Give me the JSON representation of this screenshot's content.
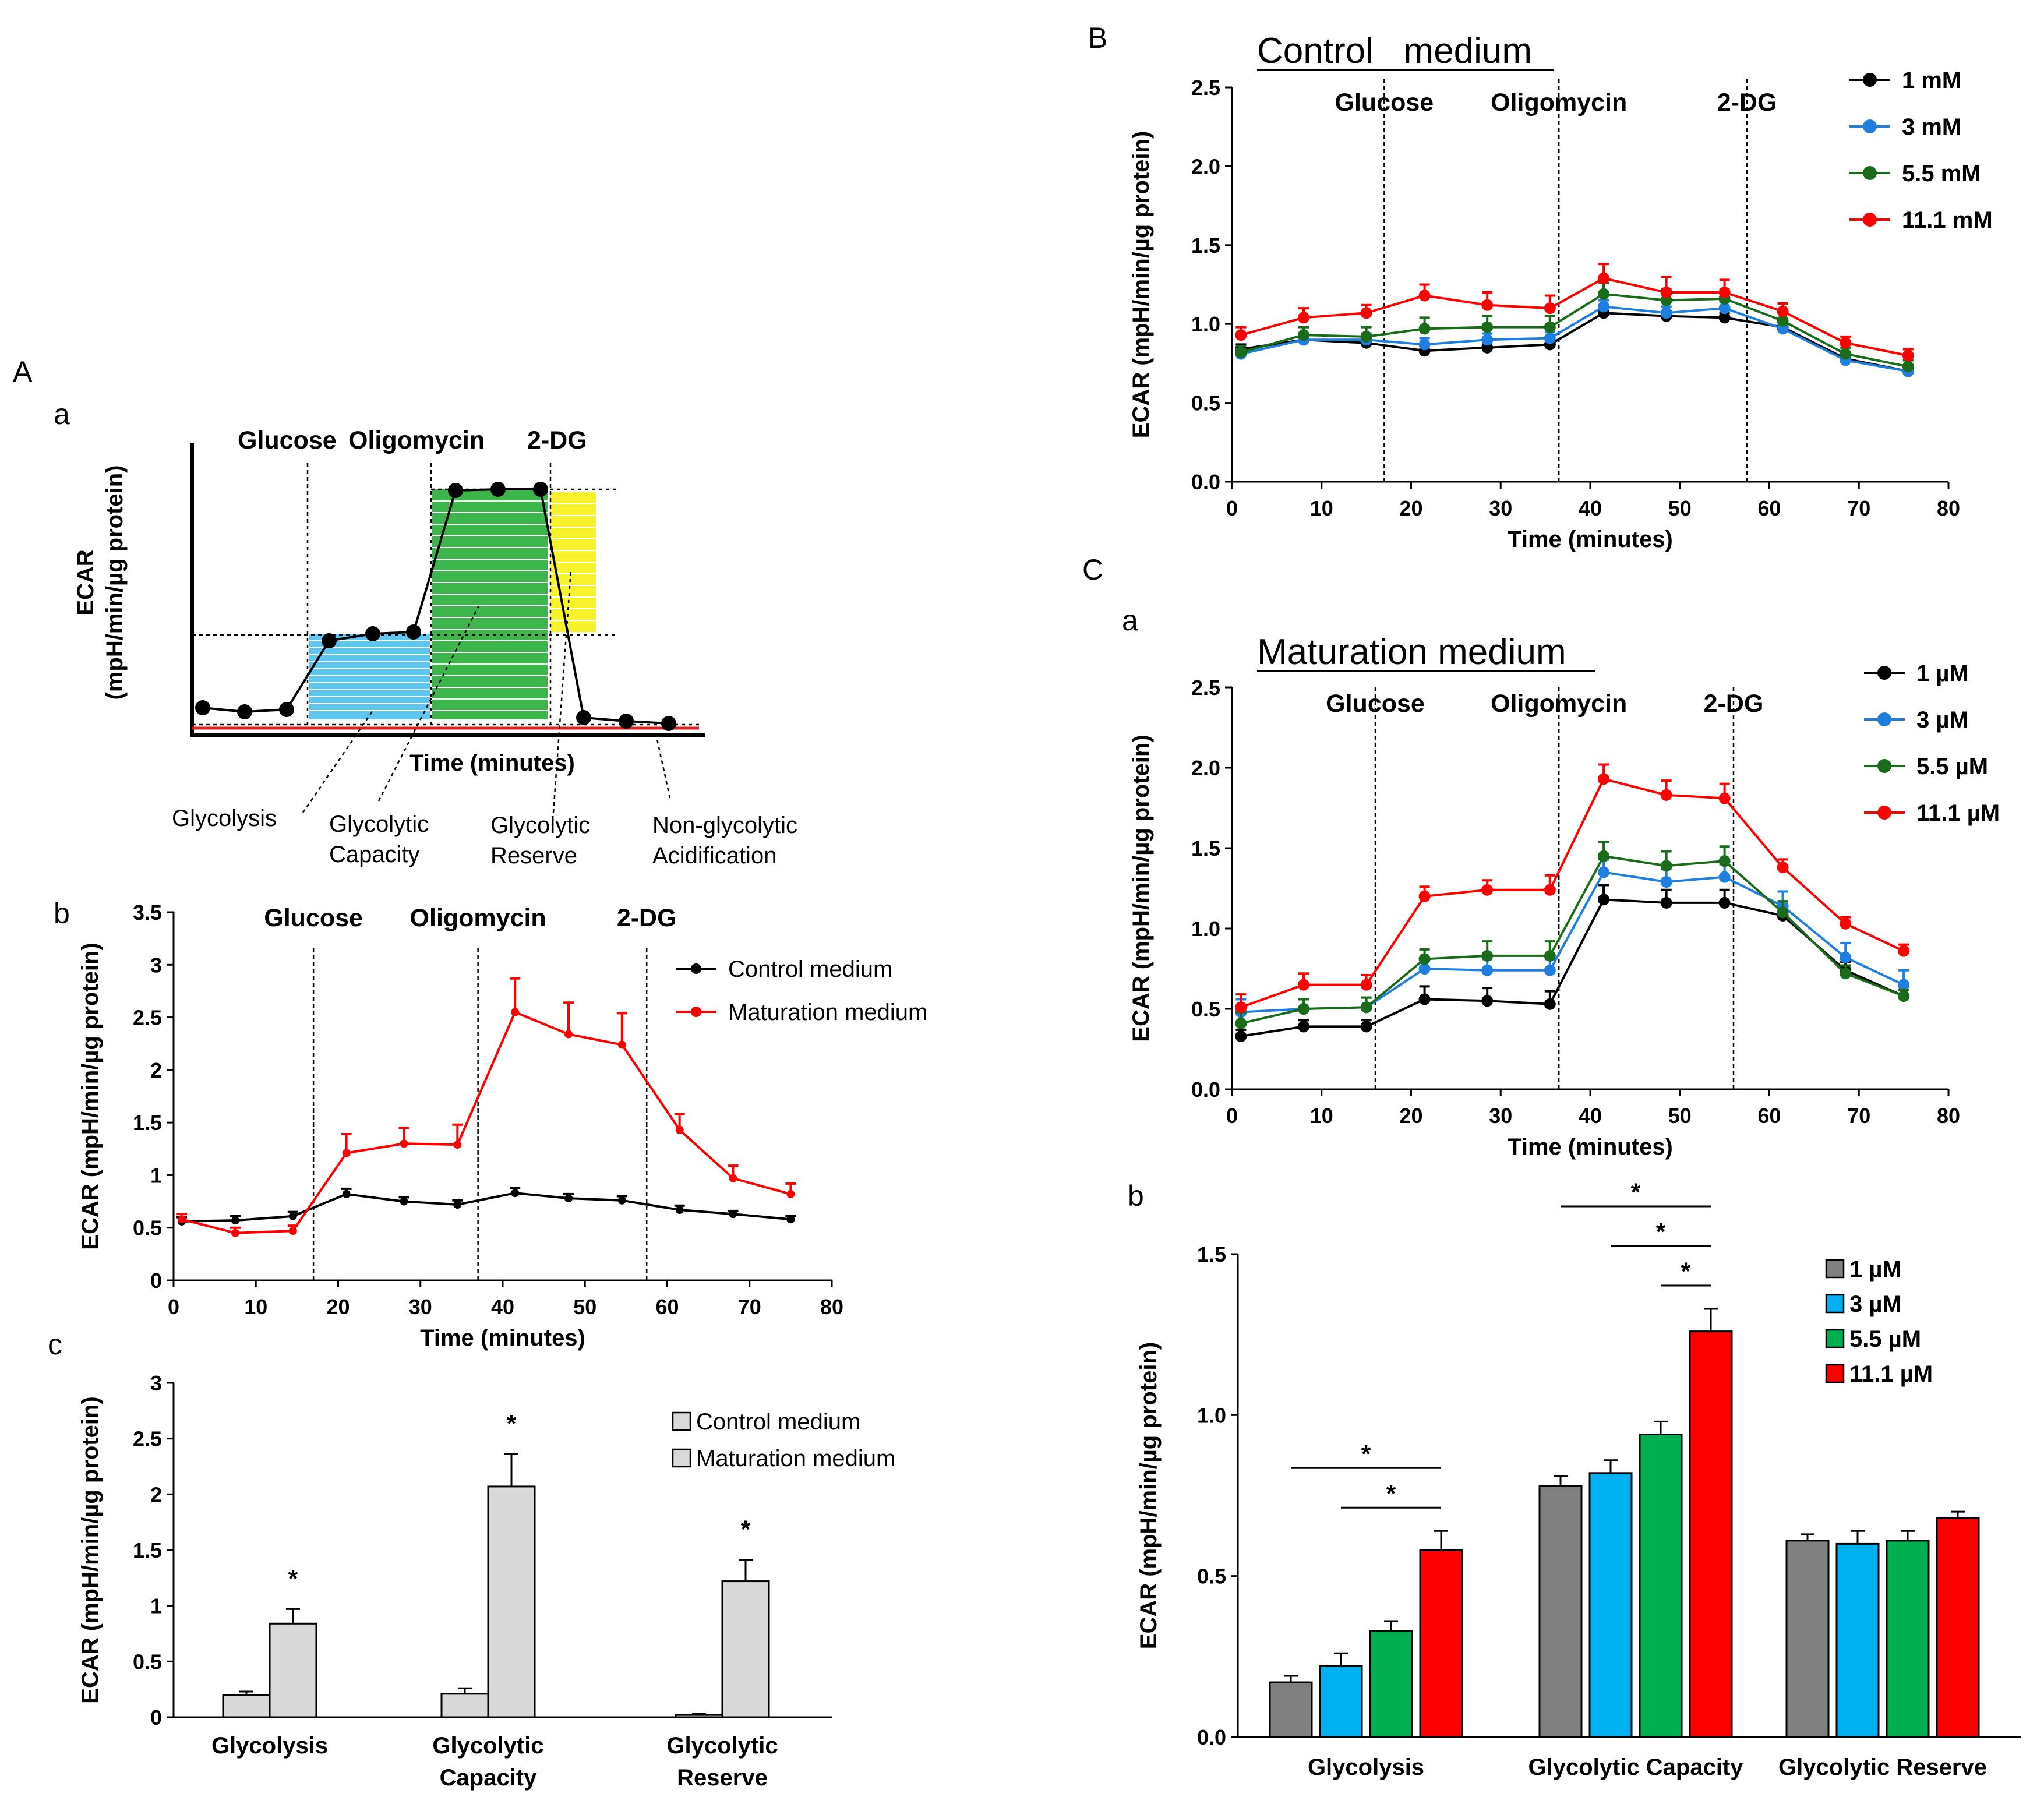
{
  "panels": {
    "A": "A",
    "Aa": "a",
    "Ab": "b",
    "Ac": "c",
    "B": "B",
    "C": "C",
    "Ca": "a",
    "Cb": "b"
  },
  "schematic": {
    "ylabel1": "ECAR",
    "ylabel2": "(mpH/min/µg protein)",
    "xlabel": "Time (minutes)",
    "markers": [
      "Glucose",
      "Oligomycin",
      "2-DG"
    ],
    "annotations": [
      [
        "Glycolysis"
      ],
      [
        "Glycolytic",
        "Capacity"
      ],
      [
        "Glycolytic",
        "Reserve"
      ],
      [
        "Non-glycolytic",
        "Acidification"
      ]
    ],
    "colors": {
      "glycolysis": "#5ec7f0",
      "capacity": "#3cb54a",
      "reserve": "#f7f22c",
      "baseline": "#e02020"
    }
  },
  "colors": {
    "black": "#000000",
    "red": "#ff0000",
    "blue": "#1f7fe0",
    "green": "#1a6b1a",
    "bar_gray": "#808080",
    "bar_blue": "#00b0f0",
    "bar_green": "#00b050",
    "bar_red": "#ff0000",
    "bar_light": "#d9d9d9"
  },
  "chart_data": [
    {
      "id": "A-b",
      "type": "line",
      "title": "",
      "xlabel": "Time (minutes)",
      "ylabel": "ECAR (mpH/min/µg protein)",
      "xlim": [
        0,
        80
      ],
      "ylim": [
        0,
        3.5
      ],
      "xticks": [
        "0",
        "10",
        "20",
        "30",
        "40",
        "50",
        "60",
        "70",
        "80"
      ],
      "yticks": [
        "0",
        "0.5",
        "1",
        "1.5",
        "2",
        "2.5",
        "3",
        "3.5"
      ],
      "markers": [
        {
          "x": 17,
          "label": "Glucose"
        },
        {
          "x": 37,
          "label": "Oligomycin"
        },
        {
          "x": 57.5,
          "label": "2-DG"
        }
      ],
      "x": [
        1,
        7.5,
        14.5,
        21,
        28,
        34.5,
        41.5,
        48,
        54.5,
        61.5,
        68,
        75
      ],
      "series": [
        {
          "name": "Control medium",
          "values": [
            0.56,
            0.57,
            0.61,
            0.82,
            0.75,
            0.72,
            0.83,
            0.78,
            0.76,
            0.67,
            0.63,
            0.58
          ],
          "err": [
            0.04,
            0.04,
            0.04,
            0.05,
            0.04,
            0.04,
            0.05,
            0.04,
            0.04,
            0.04,
            0.03,
            0.03
          ]
        },
        {
          "name": "Maturation medium",
          "values": [
            0.58,
            0.45,
            0.47,
            1.21,
            1.3,
            1.29,
            2.55,
            2.34,
            2.24,
            1.43,
            0.97,
            0.82
          ],
          "err": [
            0.05,
            0.05,
            0.05,
            0.18,
            0.15,
            0.19,
            0.32,
            0.3,
            0.3,
            0.15,
            0.12,
            0.1
          ]
        }
      ]
    },
    {
      "id": "A-c",
      "type": "bar",
      "title": "",
      "xlabel": "",
      "ylabel": "ECAR (mpH/min/µg protein)",
      "ylim": [
        0,
        3
      ],
      "yticks": [
        "0",
        "0.5",
        "1",
        "1.5",
        "2",
        "2.5",
        "3"
      ],
      "categories": [
        [
          "Glycolysis"
        ],
        [
          "Glycolytic",
          "Capacity"
        ],
        [
          "Glycolytic",
          "Reserve"
        ]
      ],
      "series": [
        {
          "name": "Control medium",
          "values": [
            0.2,
            0.21,
            0.02
          ],
          "err": [
            0.03,
            0.05,
            0.01
          ]
        },
        {
          "name": "Maturation medium",
          "values": [
            0.84,
            2.07,
            1.22
          ],
          "err": [
            0.13,
            0.29,
            0.19
          ]
        }
      ],
      "significance": [
        "*",
        "*",
        "*"
      ]
    },
    {
      "id": "B",
      "type": "line",
      "title": "Control   medium",
      "xlabel": "Time (minutes)",
      "ylabel": "ECAR (mpH/min/µg protein)",
      "xlim": [
        0,
        80
      ],
      "ylim": [
        0,
        2.5
      ],
      "xticks": [
        "0",
        "10",
        "20",
        "30",
        "40",
        "50",
        "60",
        "70",
        "80"
      ],
      "yticks": [
        "0.0",
        "0.5",
        "1.0",
        "1.5",
        "2.0",
        "2.5"
      ],
      "markers": [
        {
          "x": 17,
          "label": "Glucose"
        },
        {
          "x": 36.5,
          "label": "Oligomycin"
        },
        {
          "x": 57.5,
          "label": "2-DG"
        }
      ],
      "x": [
        1,
        8,
        15,
        21.5,
        28.5,
        35.5,
        41.5,
        48.5,
        55,
        61.5,
        68.5,
        75.5
      ],
      "series": [
        {
          "name": "1 mM",
          "values": [
            0.84,
            0.9,
            0.88,
            0.83,
            0.85,
            0.87,
            1.07,
            1.05,
            1.04,
            0.98,
            0.78,
            0.7
          ],
          "err": [
            0.03,
            0.03,
            0.03,
            0.03,
            0.03,
            0.03,
            0.03,
            0.03,
            0.03,
            0.03,
            0.03,
            0.03
          ]
        },
        {
          "name": "3 mM",
          "values": [
            0.81,
            0.9,
            0.9,
            0.87,
            0.9,
            0.91,
            1.11,
            1.07,
            1.1,
            0.97,
            0.77,
            0.7
          ],
          "err": [
            0.03,
            0.04,
            0.04,
            0.04,
            0.04,
            0.04,
            0.04,
            0.04,
            0.04,
            0.03,
            0.03,
            0.04
          ]
        },
        {
          "name": "5.5 mM",
          "values": [
            0.82,
            0.93,
            0.92,
            0.97,
            0.98,
            0.98,
            1.19,
            1.15,
            1.16,
            1.02,
            0.81,
            0.73
          ],
          "err": [
            0.04,
            0.05,
            0.06,
            0.07,
            0.07,
            0.07,
            0.07,
            0.07,
            0.06,
            0.05,
            0.04,
            0.04
          ]
        },
        {
          "name": "11.1 mM",
          "values": [
            0.93,
            1.04,
            1.07,
            1.18,
            1.12,
            1.1,
            1.29,
            1.2,
            1.2,
            1.08,
            0.88,
            0.8
          ],
          "err": [
            0.05,
            0.06,
            0.05,
            0.07,
            0.08,
            0.08,
            0.09,
            0.1,
            0.08,
            0.05,
            0.04,
            0.04
          ]
        }
      ]
    },
    {
      "id": "C-a",
      "type": "line",
      "title": "Maturation medium",
      "xlabel": "Time (minutes)",
      "ylabel": "ECAR (mpH/min/µg protein)",
      "xlim": [
        0,
        80
      ],
      "ylim": [
        0,
        2.5
      ],
      "xticks": [
        "0",
        "10",
        "20",
        "30",
        "40",
        "50",
        "60",
        "70",
        "80"
      ],
      "yticks": [
        "0.0",
        "0.5",
        "1.0",
        "1.5",
        "2.0",
        "2.5"
      ],
      "markers": [
        {
          "x": 16,
          "label": "Glucose"
        },
        {
          "x": 36.5,
          "label": "Oligomycin"
        },
        {
          "x": 56,
          "label": "2-DG"
        }
      ],
      "x": [
        1,
        8,
        15,
        21.5,
        28.5,
        35.5,
        41.5,
        48.5,
        55,
        61.5,
        68.5,
        75
      ],
      "series": [
        {
          "name": "1 µM",
          "values": [
            0.33,
            0.39,
            0.39,
            0.56,
            0.55,
            0.53,
            1.18,
            1.16,
            1.16,
            1.08,
            0.74,
            0.58
          ],
          "err": [
            0.04,
            0.04,
            0.04,
            0.08,
            0.08,
            0.08,
            0.09,
            0.08,
            0.08,
            0.06,
            0.05,
            0.04
          ]
        },
        {
          "name": "3 µM",
          "values": [
            0.48,
            0.5,
            0.51,
            0.75,
            0.74,
            0.74,
            1.35,
            1.29,
            1.32,
            1.14,
            0.82,
            0.65
          ],
          "err": [
            0.08,
            0.06,
            0.06,
            0.07,
            0.07,
            0.07,
            0.08,
            0.08,
            0.08,
            0.09,
            0.09,
            0.09
          ]
        },
        {
          "name": "5.5 µM",
          "values": [
            0.41,
            0.5,
            0.51,
            0.81,
            0.83,
            0.83,
            1.45,
            1.39,
            1.42,
            1.1,
            0.72,
            0.58
          ],
          "err": [
            0.07,
            0.06,
            0.06,
            0.06,
            0.09,
            0.09,
            0.09,
            0.09,
            0.09,
            0.07,
            0.05,
            0.04
          ]
        },
        {
          "name": "11.1 µM",
          "values": [
            0.51,
            0.65,
            0.65,
            1.2,
            1.24,
            1.24,
            1.93,
            1.83,
            1.81,
            1.38,
            1.03,
            0.86
          ],
          "err": [
            0.08,
            0.07,
            0.06,
            0.06,
            0.06,
            0.09,
            0.09,
            0.09,
            0.09,
            0.05,
            0.04,
            0.04
          ]
        }
      ]
    },
    {
      "id": "C-b",
      "type": "bar",
      "title": "",
      "xlabel": "",
      "ylabel": "ECAR (mpH/min/µg protein)",
      "ylim": [
        0,
        1.5
      ],
      "yticks": [
        "0.0",
        "0.5",
        "1.0",
        "1.5"
      ],
      "categories": [
        [
          "Glycolysis"
        ],
        [
          "Glycolytic Capacity"
        ],
        [
          "Glycolytic Reserve"
        ]
      ],
      "series": [
        {
          "name": "1 µM",
          "values": [
            0.17,
            0.78,
            0.61
          ],
          "err": [
            0.02,
            0.03,
            0.02
          ]
        },
        {
          "name": "3 µM",
          "values": [
            0.22,
            0.82,
            0.6
          ],
          "err": [
            0.04,
            0.04,
            0.04
          ]
        },
        {
          "name": "5.5 µM",
          "values": [
            0.33,
            0.94,
            0.61
          ],
          "err": [
            0.03,
            0.04,
            0.03
          ]
        },
        {
          "name": "11.1 µM",
          "values": [
            0.58,
            1.26,
            0.68
          ],
          "err": [
            0.06,
            0.07,
            0.02
          ]
        }
      ],
      "significance": [
        {
          "category": 0,
          "from": 0,
          "to": 3,
          "label": "*"
        },
        {
          "category": 0,
          "from": 1,
          "to": 3,
          "label": "*"
        },
        {
          "category": 1,
          "from": 0,
          "to": 3,
          "label": "*"
        },
        {
          "category": 1,
          "from": 1,
          "to": 3,
          "label": "*"
        },
        {
          "category": 1,
          "from": 2,
          "to": 3,
          "label": "*"
        }
      ]
    }
  ]
}
